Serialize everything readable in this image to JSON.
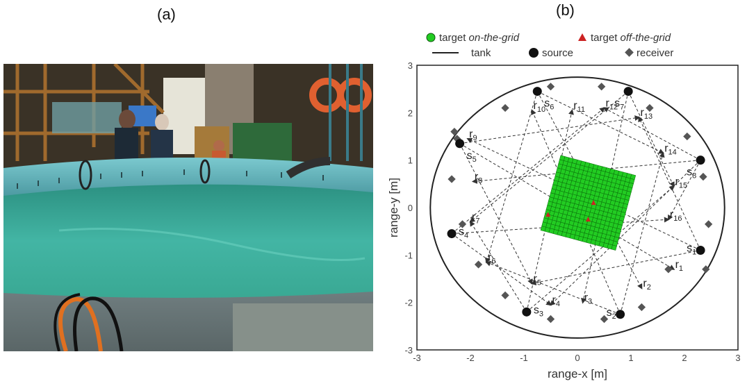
{
  "panel_a": {
    "label": "(a)"
  },
  "panel_b": {
    "label": "(b)",
    "legend": {
      "on_grid_prefix": "target ",
      "on_grid_em": "on-the-grid",
      "off_grid_prefix": "target ",
      "off_grid_em": "off-the-grid",
      "tank": "tank",
      "source": "source",
      "receiver": "receiver"
    },
    "xlabel": "range-x [m]",
    "ylabel": "range-y [m]",
    "xticks": [
      "-3",
      "-2",
      "-1",
      "0",
      "1",
      "2",
      "3"
    ],
    "yticks": [
      "3",
      "2",
      "1",
      "0",
      "-1",
      "-2",
      "-3"
    ],
    "colors": {
      "grid": "#22cc22",
      "off_grid": "#cc2222",
      "source": "#111111",
      "receiver": "#555555"
    }
  },
  "chart_data": {
    "type": "scatter",
    "xlim": [
      -3,
      3
    ],
    "ylim": [
      -3,
      3
    ],
    "tank": {
      "shape": "circle",
      "center": [
        0,
        0
      ],
      "radius": 2.75
    },
    "target_grid": {
      "center": [
        0.2,
        0.1
      ],
      "size": 1.45,
      "rotation_deg": 15,
      "cells_per_side": 18
    },
    "off_grid_targets": [
      [
        0.3,
        0.1
      ],
      [
        -0.55,
        -0.15
      ],
      [
        0.2,
        -0.25
      ]
    ],
    "sources": [
      {
        "name": "s1",
        "x": 2.3,
        "y": -0.9
      },
      {
        "name": "s2",
        "x": 0.8,
        "y": -2.25
      },
      {
        "name": "s3",
        "x": -0.95,
        "y": -2.2
      },
      {
        "name": "s4",
        "x": -2.35,
        "y": -0.55
      },
      {
        "name": "s5",
        "x": -2.2,
        "y": 1.35
      },
      {
        "name": "s6",
        "x": -0.75,
        "y": 2.45
      },
      {
        "name": "s7",
        "x": 0.95,
        "y": 2.45
      },
      {
        "name": "s8",
        "x": 2.3,
        "y": 1.0
      }
    ],
    "receivers": [
      {
        "name": "r1",
        "x": 1.8,
        "y": -1.3
      },
      {
        "name": "r2",
        "x": 1.2,
        "y": -1.7
      },
      {
        "name": "r3",
        "x": 0.1,
        "y": -2.0
      },
      {
        "name": "r4",
        "x": -0.5,
        "y": -2.05
      },
      {
        "name": "r5",
        "x": -0.85,
        "y": -1.6
      },
      {
        "name": "r6",
        "x": -1.7,
        "y": -1.15
      },
      {
        "name": "r7",
        "x": -2.0,
        "y": -0.3
      },
      {
        "name": "r8",
        "x": -1.95,
        "y": 0.55
      },
      {
        "name": "r9",
        "x": -2.05,
        "y": 1.45
      },
      {
        "name": "r10",
        "x": -0.85,
        "y": 2.05
      },
      {
        "name": "r11",
        "x": -0.1,
        "y": 2.05
      },
      {
        "name": "r12",
        "x": 0.5,
        "y": 2.1
      },
      {
        "name": "r13",
        "x": 1.15,
        "y": 1.9
      },
      {
        "name": "r14",
        "x": 1.6,
        "y": 1.15
      },
      {
        "name": "r15",
        "x": 1.8,
        "y": 0.45
      },
      {
        "name": "r16",
        "x": 1.7,
        "y": -0.25
      }
    ],
    "receiver_markers": [
      [
        1.7,
        -1.3
      ],
      [
        1.2,
        -2.1
      ],
      [
        0.5,
        -2.35
      ],
      [
        -0.5,
        -2.35
      ],
      [
        -1.35,
        -1.85
      ],
      [
        -1.85,
        -1.2
      ],
      [
        -2.15,
        -0.35
      ],
      [
        -2.35,
        0.6
      ],
      [
        -2.25,
        1.45
      ],
      [
        -1.35,
        2.1
      ],
      [
        -0.5,
        2.55
      ],
      [
        0.45,
        2.55
      ],
      [
        1.35,
        2.1
      ],
      [
        2.05,
        1.5
      ],
      [
        2.35,
        0.65
      ],
      [
        2.45,
        -0.35
      ],
      [
        2.4,
        -1.3
      ],
      [
        -2.3,
        1.6
      ]
    ]
  }
}
